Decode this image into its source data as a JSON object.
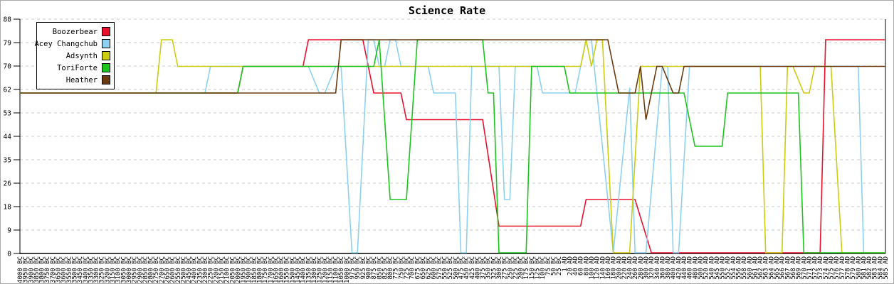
{
  "title": "Science Rate",
  "chart_data": {
    "type": "line",
    "title": "Science Rate",
    "xlabel": "",
    "ylabel": "",
    "ylim": [
      0,
      88
    ],
    "y_ticks": [
      0,
      9,
      18,
      26,
      35,
      44,
      53,
      62,
      70,
      79,
      88
    ],
    "grid": "horizontal-dashed",
    "grid_color": "#c8c8c8",
    "legend_position": "top-left",
    "x_labels": [
      "4000 BC",
      "3950 BC",
      "3900 BC",
      "3850 BC",
      "3800 BC",
      "3750 BC",
      "3700 BC",
      "3650 BC",
      "3600 BC",
      "3550 BC",
      "3500 BC",
      "3450 BC",
      "3400 BC",
      "3350 BC",
      "3300 BC",
      "3250 BC",
      "3200 BC",
      "3150 BC",
      "3100 BC",
      "3050 BC",
      "3000 BC",
      "2950 BC",
      "2900 BC",
      "2850 BC",
      "2800 BC",
      "2750 BC",
      "2700 BC",
      "2650 BC",
      "2600 BC",
      "2550 BC",
      "2500 BC",
      "2450 BC",
      "2400 BC",
      "2350 BC",
      "2300 BC",
      "2250 BC",
      "2200 BC",
      "2150 BC",
      "2100 BC",
      "2050 BC",
      "2000 BC",
      "1950 BC",
      "1900 BC",
      "1850 BC",
      "1800 BC",
      "1750 BC",
      "1700 BC",
      "1650 BC",
      "1600 BC",
      "1550 BC",
      "1500 BC",
      "1450 BC",
      "1400 BC",
      "1350 BC",
      "1300 BC",
      "1250 BC",
      "1200 BC",
      "1150 BC",
      "1100 BC",
      "1050 BC",
      "1000 BC",
      "975 BC",
      "950 BC",
      "925 BC",
      "900 BC",
      "875 BC",
      "850 BC",
      "825 BC",
      "800 BC",
      "775 BC",
      "750 BC",
      "725 BC",
      "700 BC",
      "675 BC",
      "650 BC",
      "625 BC",
      "600 BC",
      "575 BC",
      "550 BC",
      "525 BC",
      "500 BC",
      "475 BC",
      "450 BC",
      "425 BC",
      "400 BC",
      "375 BC",
      "350 BC",
      "325 BC",
      "300 BC",
      "275 BC",
      "250 BC",
      "225 BC",
      "200 BC",
      "175 BC",
      "150 BC",
      "125 BC",
      "100 BC",
      "75 BC",
      "50 BC",
      "25 BC",
      "1 AD",
      "20 AD",
      "40 AD",
      "60 AD",
      "80 AD",
      "100 AD",
      "120 AD",
      "140 AD",
      "160 AD",
      "180 AD",
      "200 AD",
      "220 AD",
      "240 AD",
      "260 AD",
      "280 AD",
      "300 AD",
      "320 AD",
      "340 AD",
      "360 AD",
      "380 AD",
      "400 AD",
      "420 AD",
      "440 AD",
      "460 AD",
      "480 AD",
      "500 AD",
      "520 AD",
      "540 AD",
      "545 AD",
      "550 AD",
      "552 AD",
      "554 AD",
      "556 AD",
      "558 AD",
      "560 AD",
      "561 AD",
      "562 AD",
      "563 AD",
      "564 AD",
      "565 AD",
      "566 AD",
      "567 AD",
      "568 AD",
      "569 AD",
      "570 AD",
      "571 AD",
      "572 AD",
      "573 AD",
      "574 AD",
      "575 AD",
      "576 AD",
      "577 AD",
      "578 AD",
      "579 AD",
      "580 AD",
      "581 AD",
      "582 AD",
      "583 AD",
      "584 AD",
      "585 AD"
    ],
    "series": [
      {
        "name": "Boozerbear",
        "color": "#e8112d",
        "points": [
          [
            0,
            60
          ],
          [
            40,
            60
          ],
          [
            41,
            70
          ],
          [
            52,
            70
          ],
          [
            53,
            80
          ],
          [
            63,
            80
          ],
          [
            65,
            60
          ],
          [
            70,
            60
          ],
          [
            71,
            50
          ],
          [
            85,
            50
          ],
          [
            88,
            10
          ],
          [
            103,
            10
          ],
          [
            104,
            20
          ],
          [
            113,
            20
          ],
          [
            116,
            0
          ],
          [
            147,
            0
          ],
          [
            148,
            80
          ],
          [
            159,
            80
          ]
        ]
      },
      {
        "name": "Acey Changchub",
        "color": "#8dd0f0",
        "points": [
          [
            0,
            60
          ],
          [
            34,
            60
          ],
          [
            35,
            70
          ],
          [
            53,
            70
          ],
          [
            55,
            60
          ],
          [
            56,
            60
          ],
          [
            58,
            70
          ],
          [
            59,
            70
          ],
          [
            61,
            0
          ],
          [
            62,
            0
          ],
          [
            64,
            80
          ],
          [
            65,
            80
          ],
          [
            66,
            70
          ],
          [
            67,
            70
          ],
          [
            68,
            80
          ],
          [
            69,
            80
          ],
          [
            70,
            70
          ],
          [
            75,
            70
          ],
          [
            76,
            60
          ],
          [
            80,
            60
          ],
          [
            81,
            0
          ],
          [
            82,
            0
          ],
          [
            83,
            70
          ],
          [
            88,
            70
          ],
          [
            89,
            20
          ],
          [
            90,
            20
          ],
          [
            91,
            70
          ],
          [
            95,
            70
          ],
          [
            96,
            60
          ],
          [
            102,
            60
          ],
          [
            104,
            80
          ],
          [
            105,
            80
          ],
          [
            109,
            0
          ],
          [
            112,
            62
          ],
          [
            113,
            0
          ],
          [
            115,
            0
          ],
          [
            118,
            70
          ],
          [
            119,
            70
          ],
          [
            120,
            0
          ],
          [
            121,
            0
          ],
          [
            123,
            70
          ],
          [
            154,
            70
          ],
          [
            155,
            0
          ],
          [
            159,
            0
          ]
        ]
      },
      {
        "name": "Adsynth",
        "color": "#cccc11",
        "points": [
          [
            0,
            60
          ],
          [
            25,
            60
          ],
          [
            26,
            80
          ],
          [
            28,
            80
          ],
          [
            29,
            70
          ],
          [
            103,
            70
          ],
          [
            104,
            80
          ],
          [
            105,
            70
          ],
          [
            106,
            80
          ],
          [
            107,
            80
          ],
          [
            109,
            0
          ],
          [
            112,
            0
          ],
          [
            114,
            70
          ],
          [
            136,
            70
          ],
          [
            137,
            0
          ],
          [
            140,
            0
          ],
          [
            141,
            70
          ],
          [
            142,
            70
          ],
          [
            144,
            60
          ],
          [
            145,
            60
          ],
          [
            146,
            70
          ],
          [
            149,
            70
          ],
          [
            151,
            0
          ],
          [
            159,
            0
          ]
        ]
      },
      {
        "name": "ToriForte",
        "color": "#1ec41e",
        "points": [
          [
            0,
            60
          ],
          [
            40,
            60
          ],
          [
            41,
            70
          ],
          [
            65,
            70
          ],
          [
            66,
            80
          ],
          [
            68,
            20
          ],
          [
            71,
            20
          ],
          [
            73,
            80
          ],
          [
            85,
            80
          ],
          [
            86,
            60
          ],
          [
            87,
            60
          ],
          [
            88,
            0
          ],
          [
            93,
            0
          ],
          [
            94,
            70
          ],
          [
            100,
            70
          ],
          [
            101,
            60
          ],
          [
            122,
            60
          ],
          [
            124,
            40
          ],
          [
            129,
            40
          ],
          [
            130,
            60
          ],
          [
            143,
            60
          ],
          [
            144,
            0
          ],
          [
            159,
            0
          ]
        ]
      },
      {
        "name": "Heather",
        "color": "#6b3a10",
        "points": [
          [
            0,
            60
          ],
          [
            58,
            60
          ],
          [
            59,
            80
          ],
          [
            108,
            80
          ],
          [
            110,
            60
          ],
          [
            113,
            60
          ],
          [
            114,
            70
          ],
          [
            115,
            50
          ],
          [
            117,
            70
          ],
          [
            118,
            70
          ],
          [
            120,
            60
          ],
          [
            121,
            60
          ],
          [
            122,
            70
          ],
          [
            159,
            70
          ]
        ]
      }
    ]
  }
}
